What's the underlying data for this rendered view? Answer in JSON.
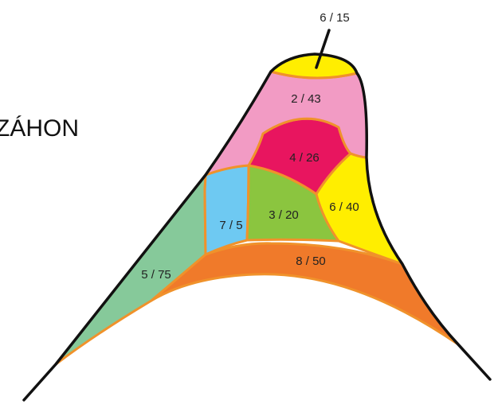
{
  "title": "ZÁHON",
  "sections": [
    {
      "id": "tip",
      "label": "6 / 15",
      "color": "#ffee00"
    },
    {
      "id": "upper-pink",
      "label": "2 / 43",
      "color": "#f29bc4"
    },
    {
      "id": "crimson",
      "label": "4 / 26",
      "color": "#e8155f"
    },
    {
      "id": "yellow-right",
      "label": "6 / 40",
      "color": "#ffee00"
    },
    {
      "id": "light-blue",
      "label": "7 / 5",
      "color": "#6ec9f2"
    },
    {
      "id": "green-center",
      "label": "3 / 20",
      "color": "#8bc53f"
    },
    {
      "id": "teal-left",
      "label": "5 / 75",
      "color": "#86c99a"
    },
    {
      "id": "orange-base",
      "label": "8 / 50",
      "color": "#f07a2a"
    }
  ]
}
